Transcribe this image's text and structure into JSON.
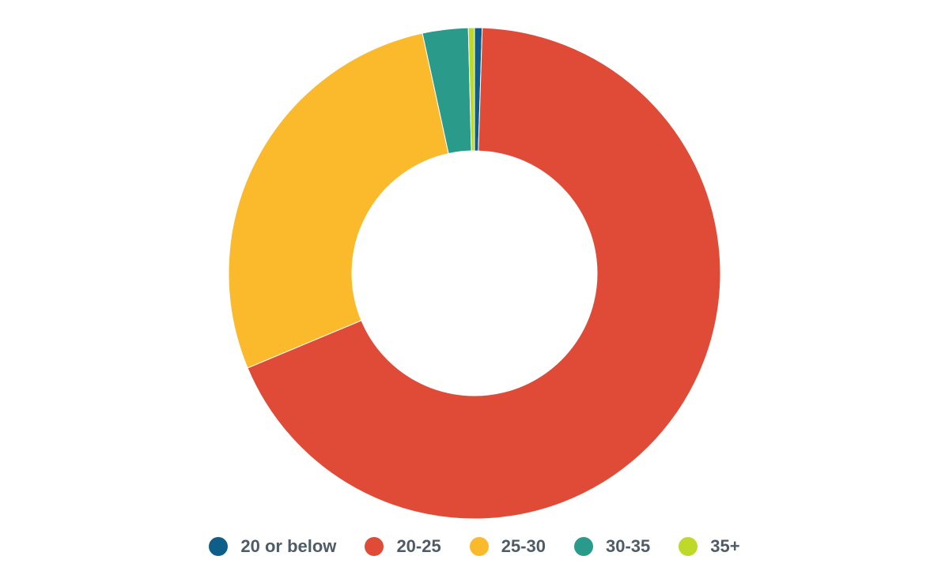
{
  "chart_data": {
    "type": "pie",
    "variant": "donut",
    "categories": [
      "20 or below",
      "20-25",
      "25-30",
      "30-35",
      "35+"
    ],
    "values": [
      0.5,
      68.2,
      27.9,
      3.0,
      0.4
    ],
    "unit": "%",
    "colors": [
      "#0d5f8a",
      "#e04b38",
      "#fbb92c",
      "#2a9a8a",
      "#bfd92b"
    ],
    "legend_position": "bottom"
  }
}
